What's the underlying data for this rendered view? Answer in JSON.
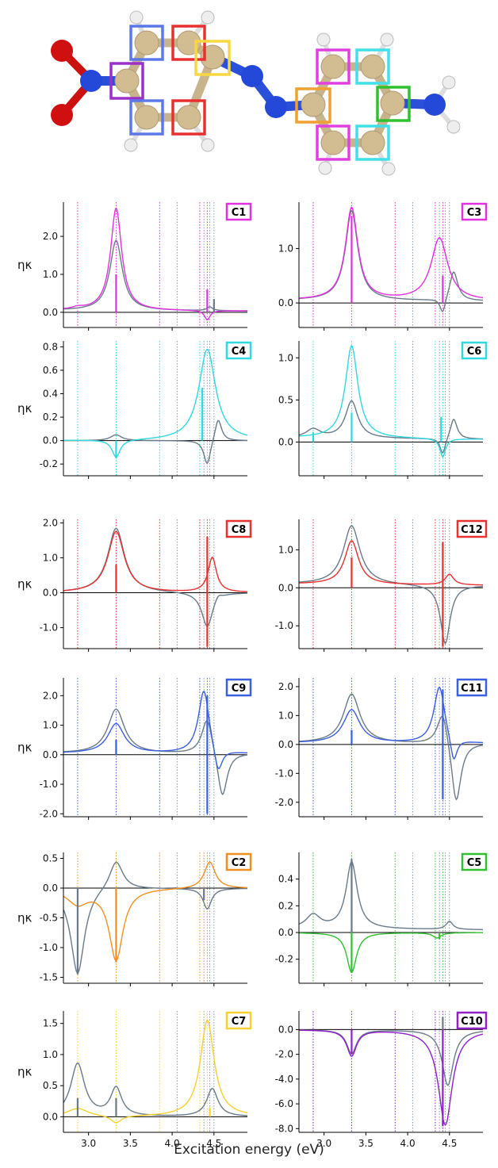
{
  "figure": {
    "xlabel": "Excitation energy (eV)",
    "ylabel": "ηκ",
    "x_ticks": [
      "3.0",
      "3.5",
      "4.0",
      "4.5"
    ]
  },
  "molecule": {
    "carbon_boxes": [
      {
        "label": "C1",
        "color": "#9b30c8"
      },
      {
        "label": "C2",
        "color": "#f0a030"
      },
      {
        "label": "C3",
        "color": "#e040e0"
      },
      {
        "label": "C4",
        "color": "#40e0e8"
      },
      {
        "label": "C5",
        "color": "#30c030"
      },
      {
        "label": "C7",
        "color": "#f8d840"
      },
      {
        "label": "C8",
        "color": "#e83030"
      },
      {
        "label": "C9",
        "color": "#5070e0"
      }
    ]
  },
  "chart_data": [
    {
      "type": "line",
      "label": "C1",
      "color": "#e030e0",
      "ylim": [
        -0.4,
        2.9
      ],
      "yticks": [
        "0.0",
        "1.0",
        "2.0"
      ],
      "ytick_values": [
        0,
        1,
        2
      ],
      "series": [
        {
          "values_at_peaks": {
            "2.87": 0.1,
            "3.33": 2.8,
            "4.42": -0.2
          }
        },
        {
          "values_at_peaks": {
            "2.87": 0.1,
            "3.33": 1.95,
            "4.42": 0.1
          }
        }
      ]
    },
    {
      "type": "line",
      "label": "C3",
      "color": "#e030e0",
      "ylim": [
        -0.45,
        1.85
      ],
      "yticks": [
        "0.0",
        "1.0"
      ],
      "ytick_values": [
        0,
        1
      ],
      "series": [
        {
          "values_at_peaks": {
            "2.87": 0.05,
            "3.33": 1.75,
            "4.42": 1.2
          }
        },
        {
          "values_at_peaks": {
            "2.87": 0.05,
            "3.33": 1.7,
            "4.42": -0.25
          }
        }
      ]
    },
    {
      "type": "line",
      "label": "C4",
      "color": "#30d8e0",
      "ylim": [
        -0.3,
        0.85
      ],
      "yticks": [
        "0.8",
        "0.6",
        "0.4",
        "0.2",
        "0.0",
        "-0.2"
      ],
      "ytick_values": [
        0.8,
        0.6,
        0.4,
        0.2,
        0,
        -0.2
      ],
      "series": [
        {
          "values_at_peaks": {
            "3.33": -0.15,
            "4.42": 0.8
          }
        },
        {
          "values_at_peaks": {
            "3.33": 0.05,
            "4.42": -0.22
          }
        }
      ]
    },
    {
      "type": "line",
      "label": "C6",
      "color": "#30d8e0",
      "ylim": [
        -0.4,
        1.2
      ],
      "yticks": [
        "1.0",
        "0.5",
        "0.0"
      ],
      "ytick_values": [
        1,
        0.5,
        0
      ],
      "series": [
        {
          "values_at_peaks": {
            "3.33": 1.12,
            "4.42": -0.2
          }
        },
        {
          "values_at_peaks": {
            "3.33": 0.47,
            "4.42": -0.2
          }
        }
      ]
    },
    {
      "type": "line",
      "label": "C8",
      "color": "#e83030",
      "ylim": [
        -1.6,
        2.1
      ],
      "yticks": [
        "2.0",
        "1.0",
        "0.0",
        "-1.0"
      ],
      "ytick_values": [
        2,
        1,
        0,
        -1
      ],
      "series": [
        {
          "values_at_peaks": {
            "3.33": 1.8,
            "4.42": 1.0
          }
        },
        {
          "values_at_peaks": {
            "3.33": 1.95,
            "4.42": -1.0
          }
        }
      ]
    },
    {
      "type": "line",
      "label": "C12",
      "color": "#e83030",
      "ylim": [
        -1.6,
        1.8
      ],
      "yticks": [
        "1.0",
        "0.0",
        "-1.0"
      ],
      "ytick_values": [
        1,
        0,
        -1
      ],
      "series": [
        {
          "values_at_peaks": {
            "3.33": 1.3,
            "4.42": 0.3
          }
        },
        {
          "values_at_peaks": {
            "3.33": 1.8,
            "4.42": -1.6
          }
        }
      ]
    },
    {
      "type": "line",
      "label": "C9",
      "color": "#3a5fe0",
      "ylim": [
        -2.1,
        2.6
      ],
      "yticks": [
        "2.0",
        "1.0",
        "0.0",
        "-1.0",
        "-2.0"
      ],
      "ytick_values": [
        2,
        1,
        0,
        -1,
        -2
      ],
      "series": [
        {
          "values_at_peaks": {
            "3.33": 1.1,
            "4.42": 2.3
          }
        },
        {
          "values_at_peaks": {
            "3.33": 1.6,
            "4.42": 1.4
          }
        }
      ]
    },
    {
      "type": "line",
      "label": "C11",
      "color": "#3a5fe0",
      "ylim": [
        -2.5,
        2.3
      ],
      "yticks": [
        "2.0",
        "1.0",
        "0.0",
        "-1.0",
        "-2.0"
      ],
      "ytick_values": [
        2,
        1,
        0,
        -1,
        -2
      ],
      "series": [
        {
          "values_at_peaks": {
            "3.33": 1.25,
            "4.42": 2.1
          }
        },
        {
          "values_at_peaks": {
            "3.33": 1.8,
            "4.42": 1.35
          }
        }
      ]
    },
    {
      "type": "line",
      "label": "C2",
      "color": "#f09020",
      "ylim": [
        -1.6,
        0.6
      ],
      "yticks": [
        "0.5",
        "0.0",
        "-0.5",
        "-1.0",
        "-1.5"
      ],
      "ytick_values": [
        0.5,
        0,
        -0.5,
        -1,
        -1.5
      ],
      "series": [
        {
          "values_at_peaks": {
            "2.87": -0.3,
            "3.33": -1.25,
            "4.42": 0.45
          }
        },
        {
          "values_at_peaks": {
            "2.87": -1.45,
            "3.33": 0.5,
            "4.42": -0.35
          }
        }
      ]
    },
    {
      "type": "line",
      "label": "C5",
      "color": "#30c030",
      "ylim": [
        -0.38,
        0.6
      ],
      "yticks": [
        "0.4",
        "0.2",
        "0.0",
        "-0.2"
      ],
      "ytick_values": [
        0.4,
        0.2,
        0,
        -0.2
      ],
      "series": [
        {
          "values_at_peaks": {
            "3.33": -0.3,
            "4.42": -0.05
          }
        },
        {
          "values_at_peaks": {
            "2.87": 0.13,
            "3.33": 0.55,
            "4.42": 0.08
          }
        }
      ]
    },
    {
      "type": "line",
      "label": "C7",
      "color": "#f8d030",
      "ylim": [
        -0.25,
        1.7
      ],
      "yticks": [
        "1.5",
        "1.0",
        "0.5",
        "0.0"
      ],
      "ytick_values": [
        1.5,
        1,
        0.5,
        0
      ],
      "series": [
        {
          "values_at_peaks": {
            "2.87": 0.15,
            "3.33": -0.12,
            "4.42": 1.6
          }
        },
        {
          "values_at_peaks": {
            "2.87": 0.9,
            "3.33": 0.5,
            "4.42": 0.5
          }
        }
      ]
    },
    {
      "type": "line",
      "label": "C10",
      "color": "#9020c8",
      "ylim": [
        -8.3,
        1.5
      ],
      "yticks": [
        "0.0",
        "-2.0",
        "-4.0",
        "-6.0",
        "-8.0"
      ],
      "ytick_values": [
        0,
        -2,
        -4,
        -6,
        -8
      ],
      "series": [
        {
          "values_at_peaks": {
            "3.33": -2.2,
            "4.42": -7.8
          }
        },
        {
          "values_at_peaks": {
            "3.33": -2.0,
            "4.42": -4.6
          }
        }
      ]
    }
  ]
}
